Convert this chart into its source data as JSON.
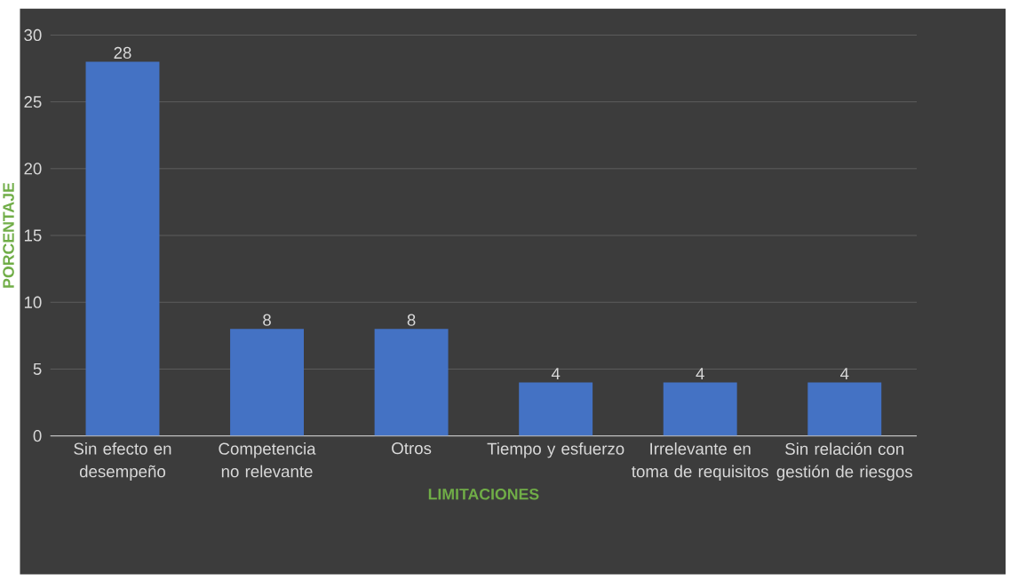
{
  "chart_data": {
    "type": "bar",
    "xlabel": "LIMITACIONES",
    "ylabel": "PORCENTAJE",
    "categories": [
      "Sin efecto en desempeño",
      "Competencia no relevante",
      "Otros",
      "Tiempo y esfuerzo",
      "Irrelevante en toma de requisitos",
      "Sin relación con gestión de riesgos"
    ],
    "values": [
      28,
      8,
      8,
      4,
      4,
      4
    ],
    "color": "#4472c4",
    "ylim": [
      0,
      30
    ],
    "yticks": [
      0,
      5,
      10,
      15,
      20,
      25,
      30
    ],
    "grid": "y",
    "data_labels": true
  }
}
